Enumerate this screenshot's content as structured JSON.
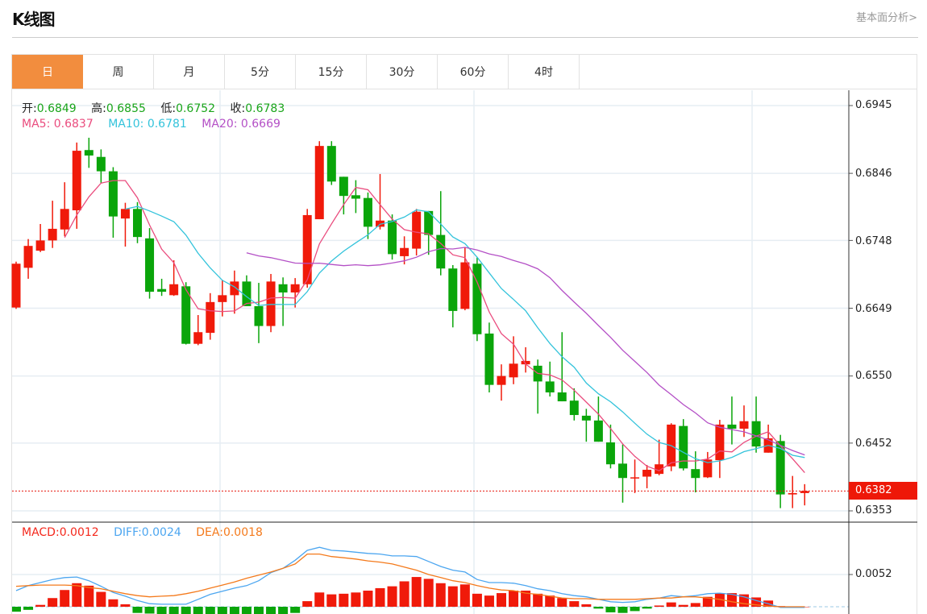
{
  "header": {
    "title": "K线图",
    "fundamental_link": "基本面分析>"
  },
  "tabs": [
    {
      "label": "日",
      "active": true
    },
    {
      "label": "周"
    },
    {
      "label": "月"
    },
    {
      "label": "5分"
    },
    {
      "label": "15分"
    },
    {
      "label": "30分"
    },
    {
      "label": "60分"
    },
    {
      "label": "4时"
    }
  ],
  "ohlc_info": {
    "open_label": "开:",
    "open": "0.6849",
    "high_label": "高:",
    "high": "0.6855",
    "low_label": "低:",
    "low": "0.6752",
    "close_label": "收:",
    "close": "0.6783"
  },
  "ma_info": {
    "ma5_label": "MA5:",
    "ma5": "0.6837",
    "ma10_label": "MA10:",
    "ma10": "0.6781",
    "ma20_label": "MA20:",
    "ma20": "0.6669"
  },
  "macd_info": {
    "macd_label": "MACD:",
    "macd": "0.0012",
    "diff_label": "DIFF:",
    "diff": "0.0024",
    "dea_label": "DEA:",
    "dea": "0.0018"
  },
  "price_axis": [
    "0.6945",
    "0.6846",
    "0.6748",
    "0.6649",
    "0.6550",
    "0.6452",
    "0.6353"
  ],
  "current_price": "0.6382",
  "macd_axis": [
    "0.0052"
  ],
  "colors": {
    "up": "#f01a0a",
    "down": "#0aa50a",
    "ma5": "#ea4c7e",
    "ma10": "#33c3db",
    "ma20": "#b450c6",
    "macd_up": "#f01a0a",
    "macd_down": "#0aa50a",
    "diff": "#4ca6f0",
    "dea": "#f47a1c",
    "accent": "#f28d3e"
  },
  "chart_data": {
    "type": "candlestick",
    "ylim": [
      0.6353,
      0.6945
    ],
    "ma_periods": [
      5,
      10,
      20
    ],
    "candles_ohlc": [
      [
        0.665,
        0.6717,
        0.6648,
        0.6714
      ],
      [
        0.6708,
        0.675,
        0.6692,
        0.674
      ],
      [
        0.6733,
        0.6772,
        0.6731,
        0.6748
      ],
      [
        0.6748,
        0.6806,
        0.6737,
        0.6765
      ],
      [
        0.6764,
        0.6833,
        0.6754,
        0.6794
      ],
      [
        0.6792,
        0.6891,
        0.6765,
        0.6879
      ],
      [
        0.688,
        0.6898,
        0.6854,
        0.6872
      ],
      [
        0.687,
        0.6881,
        0.6832,
        0.6849
      ],
      [
        0.6849,
        0.6855,
        0.6752,
        0.6783
      ],
      [
        0.678,
        0.6803,
        0.6739,
        0.6794
      ],
      [
        0.6794,
        0.6804,
        0.6744,
        0.6753
      ],
      [
        0.6751,
        0.6766,
        0.6663,
        0.6673
      ],
      [
        0.6677,
        0.6692,
        0.6667,
        0.6673
      ],
      [
        0.6668,
        0.6719,
        0.6667,
        0.6684
      ],
      [
        0.6681,
        0.6687,
        0.6596,
        0.6597
      ],
      [
        0.6597,
        0.6639,
        0.6595,
        0.6614
      ],
      [
        0.6613,
        0.6671,
        0.6603,
        0.6658
      ],
      [
        0.6658,
        0.669,
        0.6637,
        0.6668
      ],
      [
        0.6668,
        0.6704,
        0.6641,
        0.6688
      ],
      [
        0.6688,
        0.6697,
        0.6652,
        0.6652
      ],
      [
        0.6652,
        0.6686,
        0.6598,
        0.6623
      ],
      [
        0.6623,
        0.6699,
        0.6614,
        0.6688
      ],
      [
        0.6684,
        0.6694,
        0.6623,
        0.6672
      ],
      [
        0.6672,
        0.6693,
        0.665,
        0.6684
      ],
      [
        0.6684,
        0.6794,
        0.6679,
        0.6785
      ],
      [
        0.6779,
        0.6893,
        0.6779,
        0.6886
      ],
      [
        0.6886,
        0.6893,
        0.6829,
        0.6834
      ],
      [
        0.6841,
        0.6841,
        0.6786,
        0.6813
      ],
      [
        0.6814,
        0.6836,
        0.6788,
        0.6809
      ],
      [
        0.681,
        0.6818,
        0.675,
        0.6768
      ],
      [
        0.6768,
        0.6845,
        0.6764,
        0.6777
      ],
      [
        0.6777,
        0.6786,
        0.672,
        0.6728
      ],
      [
        0.6725,
        0.6754,
        0.6713,
        0.6737
      ],
      [
        0.6736,
        0.6794,
        0.6726,
        0.679
      ],
      [
        0.6791,
        0.6791,
        0.6727,
        0.6756
      ],
      [
        0.6756,
        0.682,
        0.6697,
        0.6707
      ],
      [
        0.6707,
        0.6712,
        0.6621,
        0.6645
      ],
      [
        0.6648,
        0.6738,
        0.6646,
        0.6716
      ],
      [
        0.6714,
        0.6723,
        0.6601,
        0.6611
      ],
      [
        0.6612,
        0.6628,
        0.6526,
        0.6537
      ],
      [
        0.6537,
        0.6567,
        0.6514,
        0.655
      ],
      [
        0.6548,
        0.6608,
        0.6538,
        0.6568
      ],
      [
        0.6567,
        0.6592,
        0.6555,
        0.6572
      ],
      [
        0.6565,
        0.6574,
        0.6495,
        0.6542
      ],
      [
        0.6542,
        0.6571,
        0.652,
        0.6526
      ],
      [
        0.6526,
        0.6614,
        0.6513,
        0.6513
      ],
      [
        0.6514,
        0.6532,
        0.6485,
        0.6493
      ],
      [
        0.6492,
        0.6502,
        0.6454,
        0.6485
      ],
      [
        0.6485,
        0.652,
        0.6454,
        0.6454
      ],
      [
        0.6453,
        0.6479,
        0.6415,
        0.6421
      ],
      [
        0.6422,
        0.645,
        0.6365,
        0.6401
      ],
      [
        0.6401,
        0.6428,
        0.6379,
        0.6402
      ],
      [
        0.6403,
        0.642,
        0.6386,
        0.6413
      ],
      [
        0.6407,
        0.6457,
        0.6405,
        0.6421
      ],
      [
        0.6418,
        0.6481,
        0.6411,
        0.6479
      ],
      [
        0.6477,
        0.6487,
        0.6412,
        0.6415
      ],
      [
        0.6414,
        0.644,
        0.638,
        0.6401
      ],
      [
        0.6402,
        0.6439,
        0.6401,
        0.6428
      ],
      [
        0.6427,
        0.6486,
        0.6401,
        0.6479
      ],
      [
        0.6479,
        0.652,
        0.645,
        0.6473
      ],
      [
        0.6473,
        0.6507,
        0.6461,
        0.6484
      ],
      [
        0.6484,
        0.652,
        0.6438,
        0.6447
      ],
      [
        0.6438,
        0.6479,
        0.6438,
        0.6459
      ],
      [
        0.6455,
        0.6464,
        0.6357,
        0.6377
      ],
      [
        0.6377,
        0.6404,
        0.6357,
        0.6379
      ],
      [
        0.6379,
        0.6392,
        0.6361,
        0.6382
      ]
    ],
    "macd": {
      "ylim_top": 0.0052,
      "hist": [
        -0.0008,
        -0.0005,
        0.0003,
        0.0014,
        0.0027,
        0.0038,
        0.0034,
        0.0024,
        0.0012,
        0.0004,
        -0.001,
        -0.0011,
        -0.0012,
        -0.0012,
        -0.0012,
        -0.0012,
        -0.0012,
        -0.0012,
        -0.0012,
        -0.0012,
        -0.0012,
        -0.0012,
        -0.0012,
        -0.001,
        0.0009,
        0.0023,
        0.002,
        0.0021,
        0.0023,
        0.0026,
        0.003,
        0.0033,
        0.0041,
        0.0048,
        0.0045,
        0.0038,
        0.0033,
        0.0036,
        0.0021,
        0.0018,
        0.0022,
        0.0026,
        0.0026,
        0.0021,
        0.0018,
        0.0014,
        0.0009,
        0.0004,
        -0.0003,
        -0.0009,
        -0.001,
        -0.0007,
        -0.0003,
        0.0002,
        0.0007,
        0.0003,
        0.0006,
        0.0016,
        0.0022,
        0.0022,
        0.002,
        0.0015,
        0.001,
        0.0001,
        0,
        0
      ],
      "diff": [
        0.0026,
        0.0034,
        0.0039,
        0.0044,
        0.0047,
        0.0048,
        0.0042,
        0.0033,
        0.0023,
        0.0017,
        0.001,
        0.0005,
        0.0004,
        0.0004,
        0.0004,
        0.0012,
        0.002,
        0.0025,
        0.003,
        0.0034,
        0.0042,
        0.0055,
        0.0062,
        0.0075,
        0.0091,
        0.0096,
        0.0091,
        0.009,
        0.0088,
        0.0086,
        0.0085,
        0.0082,
        0.0082,
        0.0081,
        0.0073,
        0.0065,
        0.0059,
        0.0056,
        0.0044,
        0.0039,
        0.0039,
        0.0038,
        0.0034,
        0.0029,
        0.0026,
        0.0021,
        0.0018,
        0.0016,
        0.0012,
        0.0008,
        0.0007,
        0.0008,
        0.0012,
        0.0014,
        0.0018,
        0.0016,
        0.0018,
        0.0021,
        0.0022,
        0.002,
        0.0016,
        0.001,
        0.0005,
        -0.0001,
        -0.0001,
        -0.0001
      ],
      "dea": [
        0.0033,
        0.0034,
        0.0035,
        0.0035,
        0.0035,
        0.0034,
        0.0031,
        0.0029,
        0.0025,
        0.0021,
        0.0018,
        0.0016,
        0.0017,
        0.0018,
        0.0021,
        0.0025,
        0.003,
        0.0035,
        0.004,
        0.0046,
        0.0051,
        0.0056,
        0.0062,
        0.0069,
        0.0085,
        0.0085,
        0.0081,
        0.0079,
        0.0077,
        0.0074,
        0.0072,
        0.0069,
        0.0064,
        0.0059,
        0.0052,
        0.0047,
        0.0042,
        0.0039,
        0.0034,
        0.003,
        0.0027,
        0.0026,
        0.0022,
        0.002,
        0.0017,
        0.0014,
        0.0013,
        0.0013,
        0.0012,
        0.0012,
        0.0012,
        0.0012,
        0.0013,
        0.0014,
        0.0014,
        0.0016,
        0.0016,
        0.0014,
        0.0012,
        0.0008,
        0.0005,
        0.0003,
        0.0001,
        0,
        0,
        0
      ]
    }
  }
}
